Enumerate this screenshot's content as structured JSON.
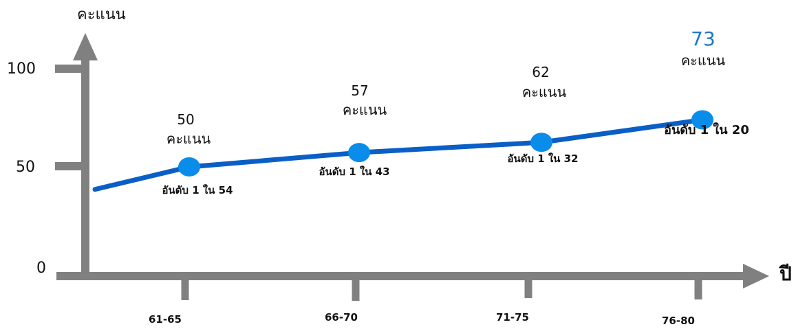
{
  "chart_data": {
    "type": "line",
    "ylabel": "คะแนน",
    "xlabel": "ปี",
    "ylim": [
      0,
      100
    ],
    "y_ticks": [
      "0",
      "50",
      "100"
    ],
    "categories": [
      "61-65",
      "66-70",
      "71-75",
      "76-80"
    ],
    "values": [
      50,
      57,
      62,
      73
    ],
    "value_labels": [
      "50",
      "57",
      "62",
      "73"
    ],
    "unit_label": "คะแนน",
    "rank_labels": [
      "อันดับ 1 ใน 54",
      "อันดับ 1 ใน 43",
      "อันดับ 1 ใน 32",
      "อันดับ 1 ใน 20"
    ],
    "start_value": 39,
    "grid": false,
    "colors": {
      "axis": "#808080",
      "line": "#0A5FC6",
      "marker": "#0A8CEB",
      "highlight_value": "#1E78C8"
    }
  }
}
